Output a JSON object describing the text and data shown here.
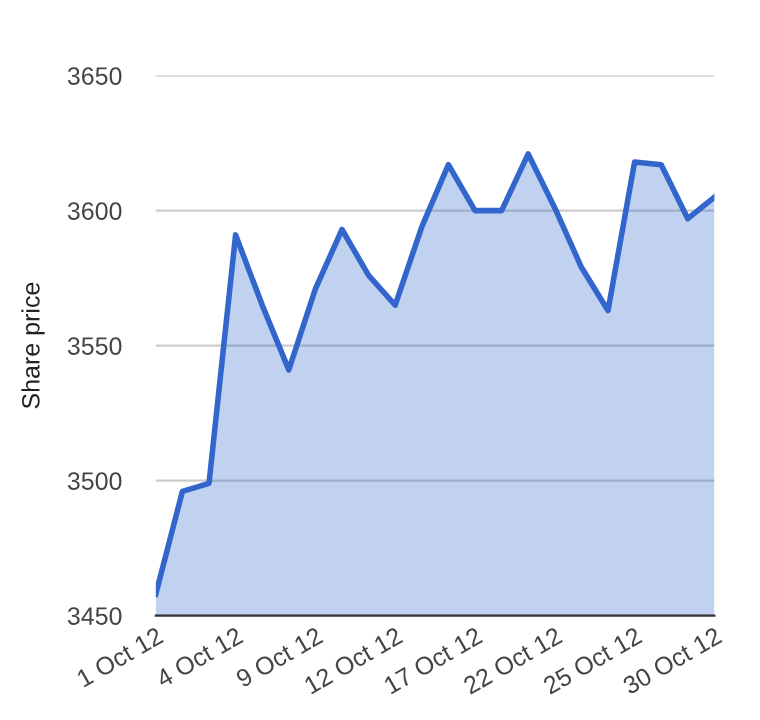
{
  "chart_data": {
    "type": "area",
    "ylabel": "Share price",
    "categories": [
      "1 Oct 12",
      null,
      null,
      "4 Oct 12",
      null,
      null,
      "9 Oct 12",
      null,
      null,
      "12 Oct 12",
      null,
      null,
      "17 Oct 12",
      null,
      null,
      "22 Oct 12",
      null,
      null,
      "25 Oct 12",
      null,
      null,
      "30 Oct 12"
    ],
    "series": [
      {
        "color": "#3366cc",
        "values": [
          3458,
          3496,
          3499,
          3591,
          3565,
          3541,
          3571,
          3593,
          3576,
          3565,
          3594,
          3617,
          3600,
          3600,
          3621,
          3601,
          3579,
          3563,
          3618,
          3617,
          3597,
          3605
        ]
      }
    ],
    "ylim": [
      3450,
      3650
    ],
    "yticks": [
      3450,
      3500,
      3550,
      3600,
      3650
    ],
    "grid": "y",
    "marker": "none",
    "line_style": "solid"
  }
}
